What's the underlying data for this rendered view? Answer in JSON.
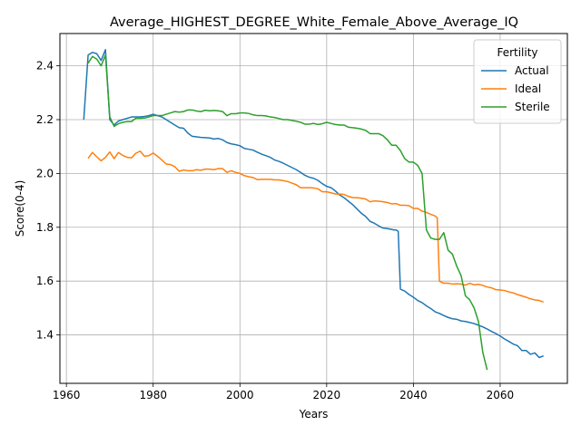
{
  "chart_data": {
    "type": "line",
    "title": "Average_HIGHEST_DEGREE_White_Female_Above_Average_IQ",
    "xlabel": "Years",
    "ylabel": "Score(0-4)",
    "xlim": [
      1958.5,
      2075.5
    ],
    "ylim": [
      1.22,
      2.52
    ],
    "xticks": [
      1960,
      1980,
      2000,
      2020,
      2040,
      2060
    ],
    "yticks": [
      1.4,
      1.6,
      1.8,
      2.0,
      2.2,
      2.4
    ],
    "ytick_labels": [
      "1.4",
      "1.6",
      "1.8",
      "2.0",
      "2.2",
      "2.4"
    ],
    "grid": true,
    "legend": {
      "title": "Fertility",
      "placement": "top-right"
    },
    "series": [
      {
        "name": "Actual",
        "color": "#1f77b4",
        "points": [
          [
            1964,
            2.2
          ],
          [
            1965,
            2.44
          ],
          [
            1966,
            2.45
          ],
          [
            1967,
            2.445
          ],
          [
            1968,
            2.42
          ],
          [
            1969,
            2.46
          ],
          [
            1970,
            2.2
          ],
          [
            1971,
            2.18
          ],
          [
            1972,
            2.195
          ],
          [
            1973,
            2.2
          ],
          [
            1974,
            2.205
          ],
          [
            1975,
            2.21
          ],
          [
            1976,
            2.21
          ],
          [
            1977,
            2.21
          ],
          [
            1978,
            2.212
          ],
          [
            1979,
            2.215
          ],
          [
            1980,
            2.22
          ],
          [
            1981,
            2.215
          ],
          [
            1982,
            2.21
          ],
          [
            1983,
            2.2
          ],
          [
            1984,
            2.19
          ],
          [
            1985,
            2.18
          ],
          [
            1986,
            2.17
          ],
          [
            1987,
            2.168
          ],
          [
            1988,
            2.15
          ],
          [
            1989,
            2.138
          ],
          [
            1990,
            2.136
          ],
          [
            1991,
            2.134
          ],
          [
            1992,
            2.133
          ],
          [
            1993,
            2.132
          ],
          [
            1994,
            2.128
          ],
          [
            1995,
            2.13
          ],
          [
            1996,
            2.125
          ],
          [
            1997,
            2.115
          ],
          [
            1998,
            2.11
          ],
          [
            1999,
            2.107
          ],
          [
            2000,
            2.103
          ],
          [
            2001,
            2.093
          ],
          [
            2002,
            2.09
          ],
          [
            2003,
            2.087
          ],
          [
            2004,
            2.079
          ],
          [
            2005,
            2.072
          ],
          [
            2006,
            2.066
          ],
          [
            2007,
            2.06
          ],
          [
            2008,
            2.05
          ],
          [
            2009,
            2.045
          ],
          [
            2010,
            2.038
          ],
          [
            2011,
            2.03
          ],
          [
            2012,
            2.022
          ],
          [
            2013,
            2.014
          ],
          [
            2014,
            2.004
          ],
          [
            2015,
            1.993
          ],
          [
            2016,
            1.986
          ],
          [
            2017,
            1.982
          ],
          [
            2018,
            1.974
          ],
          [
            2019,
            1.962
          ],
          [
            2020,
            1.952
          ],
          [
            2021,
            1.947
          ],
          [
            2022,
            1.935
          ],
          [
            2023,
            1.92
          ],
          [
            2024,
            1.91
          ],
          [
            2025,
            1.897
          ],
          [
            2026,
            1.884
          ],
          [
            2027,
            1.868
          ],
          [
            2028,
            1.852
          ],
          [
            2029,
            1.84
          ],
          [
            2030,
            1.822
          ],
          [
            2031,
            1.815
          ],
          [
            2032,
            1.805
          ],
          [
            2033,
            1.797
          ],
          [
            2034,
            1.795
          ],
          [
            2035,
            1.792
          ],
          [
            2035.5,
            1.79
          ],
          [
            2036,
            1.79
          ],
          [
            2036.5,
            1.785
          ],
          [
            2037,
            1.57
          ],
          [
            2038,
            1.563
          ],
          [
            2039,
            1.55
          ],
          [
            2040,
            1.54
          ],
          [
            2041,
            1.528
          ],
          [
            2042,
            1.52
          ],
          [
            2043,
            1.508
          ],
          [
            2044,
            1.498
          ],
          [
            2045,
            1.486
          ],
          [
            2046,
            1.48
          ],
          [
            2047,
            1.472
          ],
          [
            2048,
            1.465
          ],
          [
            2049,
            1.46
          ],
          [
            2050,
            1.458
          ],
          [
            2051,
            1.452
          ],
          [
            2052,
            1.45
          ],
          [
            2053,
            1.446
          ],
          [
            2054,
            1.442
          ],
          [
            2055,
            1.436
          ],
          [
            2056,
            1.43
          ],
          [
            2057,
            1.422
          ],
          [
            2058,
            1.413
          ],
          [
            2059,
            1.405
          ],
          [
            2060,
            1.396
          ],
          [
            2061,
            1.385
          ],
          [
            2062,
            1.376
          ],
          [
            2063,
            1.366
          ],
          [
            2064,
            1.36
          ],
          [
            2065,
            1.342
          ],
          [
            2066,
            1.342
          ],
          [
            2067,
            1.328
          ],
          [
            2068,
            1.333
          ],
          [
            2069,
            1.316
          ],
          [
            2070,
            1.322
          ]
        ]
      },
      {
        "name": "Ideal",
        "color": "#ff7f0e",
        "points": [
          [
            1965,
            2.056
          ],
          [
            1966,
            2.078
          ],
          [
            1967,
            2.062
          ],
          [
            1968,
            2.047
          ],
          [
            1969,
            2.06
          ],
          [
            1970,
            2.08
          ],
          [
            1971,
            2.055
          ],
          [
            1972,
            2.078
          ],
          [
            1973,
            2.067
          ],
          [
            1974,
            2.06
          ],
          [
            1975,
            2.058
          ],
          [
            1976,
            2.075
          ],
          [
            1977,
            2.083
          ],
          [
            1978,
            2.064
          ],
          [
            1979,
            2.066
          ],
          [
            1980,
            2.076
          ],
          [
            1981,
            2.064
          ],
          [
            1982,
            2.05
          ],
          [
            1983,
            2.035
          ],
          [
            1984,
            2.033
          ],
          [
            1985,
            2.025
          ],
          [
            1986,
            2.008
          ],
          [
            1987,
            2.013
          ],
          [
            1988,
            2.01
          ],
          [
            1989,
            2.01
          ],
          [
            1990,
            2.014
          ],
          [
            1991,
            2.012
          ],
          [
            1992,
            2.016
          ],
          [
            1993,
            2.016
          ],
          [
            1994,
            2.014
          ],
          [
            1995,
            2.018
          ],
          [
            1996,
            2.018
          ],
          [
            1997,
            2.004
          ],
          [
            1998,
            2.01
          ],
          [
            1999,
            2.004
          ],
          [
            2000,
            2.0
          ],
          [
            2001,
            1.992
          ],
          [
            2002,
            1.988
          ],
          [
            2003,
            1.985
          ],
          [
            2004,
            1.977
          ],
          [
            2005,
            1.978
          ],
          [
            2006,
            1.978
          ],
          [
            2007,
            1.978
          ],
          [
            2008,
            1.976
          ],
          [
            2009,
            1.976
          ],
          [
            2010,
            1.973
          ],
          [
            2011,
            1.97
          ],
          [
            2012,
            1.964
          ],
          [
            2013,
            1.958
          ],
          [
            2014,
            1.947
          ],
          [
            2015,
            1.947
          ],
          [
            2016,
            1.947
          ],
          [
            2017,
            1.946
          ],
          [
            2018,
            1.943
          ],
          [
            2019,
            1.932
          ],
          [
            2020,
            1.932
          ],
          [
            2021,
            1.928
          ],
          [
            2022,
            1.924
          ],
          [
            2023,
            1.923
          ],
          [
            2024,
            1.922
          ],
          [
            2025,
            1.915
          ],
          [
            2026,
            1.91
          ],
          [
            2027,
            1.91
          ],
          [
            2028,
            1.908
          ],
          [
            2029,
            1.905
          ],
          [
            2030,
            1.895
          ],
          [
            2031,
            1.898
          ],
          [
            2032,
            1.897
          ],
          [
            2033,
            1.895
          ],
          [
            2034,
            1.892
          ],
          [
            2035,
            1.887
          ],
          [
            2036,
            1.888
          ],
          [
            2037,
            1.882
          ],
          [
            2038,
            1.882
          ],
          [
            2039,
            1.88
          ],
          [
            2040,
            1.87
          ],
          [
            2041,
            1.87
          ],
          [
            2042,
            1.86
          ],
          [
            2043,
            1.855
          ],
          [
            2044,
            1.848
          ],
          [
            2045,
            1.842
          ],
          [
            2045.5,
            1.835
          ],
          [
            2046,
            1.6
          ],
          [
            2047,
            1.592
          ],
          [
            2048,
            1.592
          ],
          [
            2049,
            1.589
          ],
          [
            2050,
            1.59
          ],
          [
            2051,
            1.589
          ],
          [
            2052,
            1.585
          ],
          [
            2053,
            1.592
          ],
          [
            2054,
            1.586
          ],
          [
            2055,
            1.588
          ],
          [
            2056,
            1.584
          ],
          [
            2057,
            1.578
          ],
          [
            2058,
            1.575
          ],
          [
            2059,
            1.568
          ],
          [
            2060,
            1.567
          ],
          [
            2061,
            1.565
          ],
          [
            2062,
            1.56
          ],
          [
            2063,
            1.556
          ],
          [
            2064,
            1.55
          ],
          [
            2065,
            1.545
          ],
          [
            2066,
            1.54
          ],
          [
            2067,
            1.534
          ],
          [
            2068,
            1.53
          ],
          [
            2069,
            1.528
          ],
          [
            2070,
            1.522
          ]
        ]
      },
      {
        "name": "Sterile",
        "color": "#2ca02c",
        "points": [
          [
            1965,
            2.41
          ],
          [
            1966,
            2.435
          ],
          [
            1967,
            2.425
          ],
          [
            1968,
            2.4
          ],
          [
            1969,
            2.44
          ],
          [
            1970,
            2.21
          ],
          [
            1971,
            2.175
          ],
          [
            1972,
            2.185
          ],
          [
            1973,
            2.19
          ],
          [
            1974,
            2.193
          ],
          [
            1975,
            2.193
          ],
          [
            1976,
            2.205
          ],
          [
            1977,
            2.205
          ],
          [
            1978,
            2.206
          ],
          [
            1979,
            2.21
          ],
          [
            1980,
            2.215
          ],
          [
            1981,
            2.215
          ],
          [
            1982,
            2.215
          ],
          [
            1983,
            2.22
          ],
          [
            1984,
            2.225
          ],
          [
            1985,
            2.23
          ],
          [
            1986,
            2.228
          ],
          [
            1987,
            2.23
          ],
          [
            1988,
            2.236
          ],
          [
            1989,
            2.236
          ],
          [
            1990,
            2.232
          ],
          [
            1991,
            2.23
          ],
          [
            1992,
            2.235
          ],
          [
            1993,
            2.233
          ],
          [
            1994,
            2.234
          ],
          [
            1995,
            2.233
          ],
          [
            1996,
            2.23
          ],
          [
            1997,
            2.215
          ],
          [
            1998,
            2.222
          ],
          [
            1999,
            2.222
          ],
          [
            2000,
            2.225
          ],
          [
            2001,
            2.225
          ],
          [
            2002,
            2.223
          ],
          [
            2003,
            2.218
          ],
          [
            2004,
            2.215
          ],
          [
            2005,
            2.215
          ],
          [
            2006,
            2.214
          ],
          [
            2007,
            2.21
          ],
          [
            2008,
            2.208
          ],
          [
            2009,
            2.204
          ],
          [
            2010,
            2.2
          ],
          [
            2011,
            2.2
          ],
          [
            2012,
            2.197
          ],
          [
            2013,
            2.194
          ],
          [
            2014,
            2.19
          ],
          [
            2015,
            2.183
          ],
          [
            2016,
            2.183
          ],
          [
            2017,
            2.186
          ],
          [
            2018,
            2.182
          ],
          [
            2019,
            2.185
          ],
          [
            2020,
            2.19
          ],
          [
            2021,
            2.186
          ],
          [
            2022,
            2.182
          ],
          [
            2023,
            2.18
          ],
          [
            2024,
            2.18
          ],
          [
            2025,
            2.172
          ],
          [
            2026,
            2.17
          ],
          [
            2027,
            2.168
          ],
          [
            2028,
            2.165
          ],
          [
            2029,
            2.16
          ],
          [
            2030,
            2.148
          ],
          [
            2031,
            2.148
          ],
          [
            2032,
            2.148
          ],
          [
            2033,
            2.14
          ],
          [
            2034,
            2.125
          ],
          [
            2035,
            2.105
          ],
          [
            2036,
            2.105
          ],
          [
            2037,
            2.085
          ],
          [
            2038,
            2.055
          ],
          [
            2039,
            2.042
          ],
          [
            2040,
            2.042
          ],
          [
            2041,
            2.03
          ],
          [
            2042,
            2.0
          ],
          [
            2043,
            1.79
          ],
          [
            2044,
            1.76
          ],
          [
            2045,
            1.755
          ],
          [
            2046,
            1.755
          ],
          [
            2047,
            1.78
          ],
          [
            2048,
            1.715
          ],
          [
            2049,
            1.7
          ],
          [
            2050,
            1.655
          ],
          [
            2051,
            1.62
          ],
          [
            2052,
            1.545
          ],
          [
            2053,
            1.53
          ],
          [
            2054,
            1.5
          ],
          [
            2055,
            1.45
          ],
          [
            2056,
            1.335
          ],
          [
            2057,
            1.27
          ]
        ]
      }
    ]
  }
}
